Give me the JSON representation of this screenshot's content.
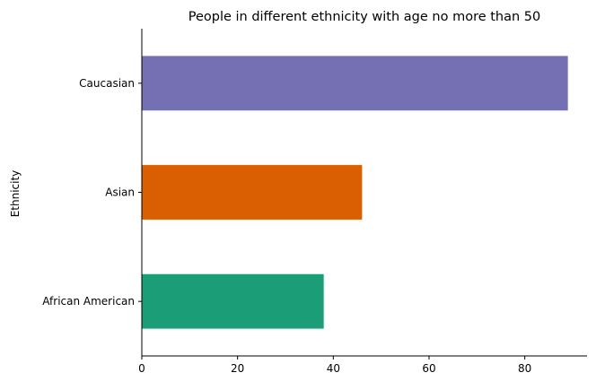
{
  "chart_data": {
    "type": "bar",
    "orientation": "horizontal",
    "title": "People in different ethnicity with age no more than 50",
    "xlabel": "",
    "ylabel": "Ethnicity",
    "categories": [
      "African American",
      "Asian",
      "Caucasian"
    ],
    "values": [
      38,
      46,
      89
    ],
    "colors": [
      "#1b9e77",
      "#d95f02",
      "#7570b3"
    ],
    "xlim": [
      0,
      93
    ],
    "xticks": [
      0,
      20,
      40,
      60,
      80
    ],
    "grid": false,
    "legend": "none"
  }
}
